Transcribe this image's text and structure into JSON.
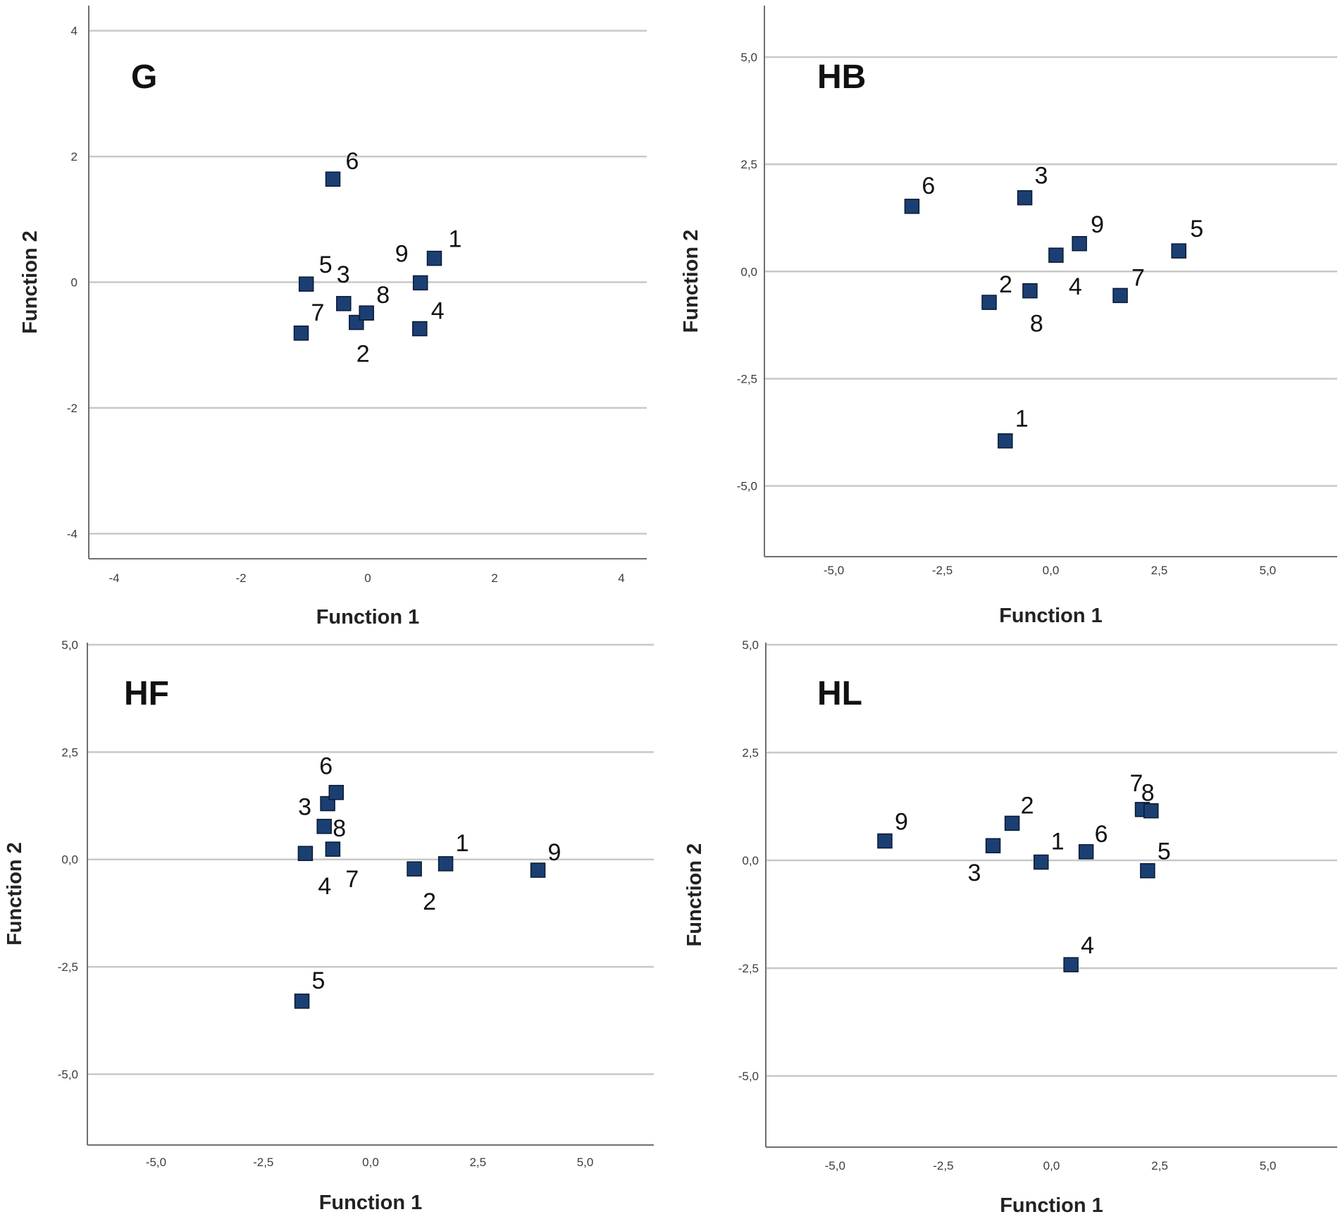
{
  "colors": {
    "marker": "#1b3f73",
    "marker_edge": "#0a1a33",
    "grid": "#c8c8c8",
    "axis": "#6f6f6f",
    "text": "#111111"
  },
  "chart_data": [
    {
      "type": "scatter",
      "panel": "G",
      "xlabel": "Function 1",
      "ylabel": "Function 2",
      "xlim": [
        -4.4,
        4.4
      ],
      "ylim": [
        -4.4,
        4.4
      ],
      "xticks": [
        -4,
        -2,
        0,
        2,
        4
      ],
      "xtick_labels": [
        "-4",
        "-2",
        "0",
        "2",
        "4"
      ],
      "yticks": [
        -4,
        -2,
        0,
        2,
        4
      ],
      "ytick_labels": [
        "-4",
        "-2",
        "0",
        "2",
        "4"
      ],
      "points": [
        {
          "label": "1",
          "x": 1.05,
          "y": 0.38
        },
        {
          "label": "2",
          "x": -0.18,
          "y": -0.64
        },
        {
          "label": "3",
          "x": -0.38,
          "y": -0.34
        },
        {
          "label": "4",
          "x": 0.82,
          "y": -0.74
        },
        {
          "label": "5",
          "x": -0.97,
          "y": -0.03
        },
        {
          "label": "6",
          "x": -0.55,
          "y": 1.64
        },
        {
          "label": "7",
          "x": -1.05,
          "y": -0.81
        },
        {
          "label": "8",
          "x": -0.02,
          "y": -0.49
        },
        {
          "label": "9",
          "x": 0.83,
          "y": -0.01
        }
      ]
    },
    {
      "type": "scatter",
      "panel": "HB",
      "xlabel": "Function 1",
      "ylabel": "Function 2",
      "xlim": [
        -6.6,
        6.6
      ],
      "ylim": [
        -6.65,
        6.2
      ],
      "xticks": [
        -5,
        -2.5,
        0,
        2.5,
        5
      ],
      "xtick_labels": [
        "-5,0",
        "-2,5",
        "0,0",
        "2,5",
        "5,0"
      ],
      "yticks": [
        -5,
        -2.5,
        0,
        2.5,
        5
      ],
      "ytick_labels": [
        "-5,0",
        "-2,5",
        "0,0",
        "2,5",
        "5,0"
      ],
      "points": [
        {
          "label": "1",
          "x": -1.05,
          "y": -3.95
        },
        {
          "label": "2",
          "x": -1.42,
          "y": -0.72
        },
        {
          "label": "3",
          "x": -0.6,
          "y": 1.72
        },
        {
          "label": "4",
          "x": 0.12,
          "y": 0.38
        },
        {
          "label": "5",
          "x": 2.95,
          "y": 0.48
        },
        {
          "label": "6",
          "x": -3.2,
          "y": 1.52
        },
        {
          "label": "7",
          "x": 1.6,
          "y": -0.56
        },
        {
          "label": "8",
          "x": -0.48,
          "y": -0.45
        },
        {
          "label": "9",
          "x": 0.66,
          "y": 0.65
        }
      ]
    },
    {
      "type": "scatter",
      "panel": "HF",
      "xlabel": "Function 1",
      "ylabel": "Function 2",
      "xlim": [
        -6.6,
        6.6
      ],
      "ylim": [
        -6.65,
        5.05
      ],
      "xticks": [
        -5,
        -2.5,
        0,
        2.5,
        5
      ],
      "xtick_labels": [
        "-5,0",
        "-2,5",
        "0,0",
        "2,5",
        "5,0"
      ],
      "yticks": [
        -5,
        -2.5,
        0,
        2.5,
        5
      ],
      "ytick_labels": [
        "-5,0",
        "-2,5",
        "0,0",
        "2,5",
        "5,0"
      ],
      "points": [
        {
          "label": "1",
          "x": 1.75,
          "y": -0.1
        },
        {
          "label": "2",
          "x": 1.02,
          "y": -0.22
        },
        {
          "label": "3",
          "x": -1.0,
          "y": 1.3
        },
        {
          "label": "4",
          "x": -1.52,
          "y": 0.14
        },
        {
          "label": "5",
          "x": -1.6,
          "y": -3.3
        },
        {
          "label": "6",
          "x": -0.8,
          "y": 1.56
        },
        {
          "label": "7",
          "x": -0.88,
          "y": 0.24
        },
        {
          "label": "8",
          "x": -1.08,
          "y": 0.77
        },
        {
          "label": "9",
          "x": 3.9,
          "y": -0.25
        }
      ]
    },
    {
      "type": "scatter",
      "panel": "HL",
      "xlabel": "Function 1",
      "ylabel": "Function 2",
      "xlim": [
        -6.6,
        6.6
      ],
      "ylim": [
        -6.65,
        5.05
      ],
      "xticks": [
        -5,
        -2.5,
        0,
        2.5,
        5
      ],
      "xtick_labels": [
        "-5,0",
        "-2,5",
        "0,0",
        "2,5",
        "5,0"
      ],
      "yticks": [
        -5,
        -2.5,
        0,
        2.5,
        5
      ],
      "ytick_labels": [
        "-5,0",
        "-2,5",
        "0,0",
        "2,5",
        "5,0"
      ],
      "points": [
        {
          "label": "1",
          "x": -0.24,
          "y": -0.04
        },
        {
          "label": "2",
          "x": -0.91,
          "y": 0.86
        },
        {
          "label": "3",
          "x": -1.35,
          "y": 0.34
        },
        {
          "label": "4",
          "x": 0.45,
          "y": -2.42
        },
        {
          "label": "5",
          "x": 2.22,
          "y": -0.24
        },
        {
          "label": "6",
          "x": 0.8,
          "y": 0.2
        },
        {
          "label": "7",
          "x": 2.1,
          "y": 1.18
        },
        {
          "label": "8",
          "x": 2.3,
          "y": 1.15
        },
        {
          "label": "9",
          "x": -3.85,
          "y": 0.45
        }
      ]
    }
  ]
}
